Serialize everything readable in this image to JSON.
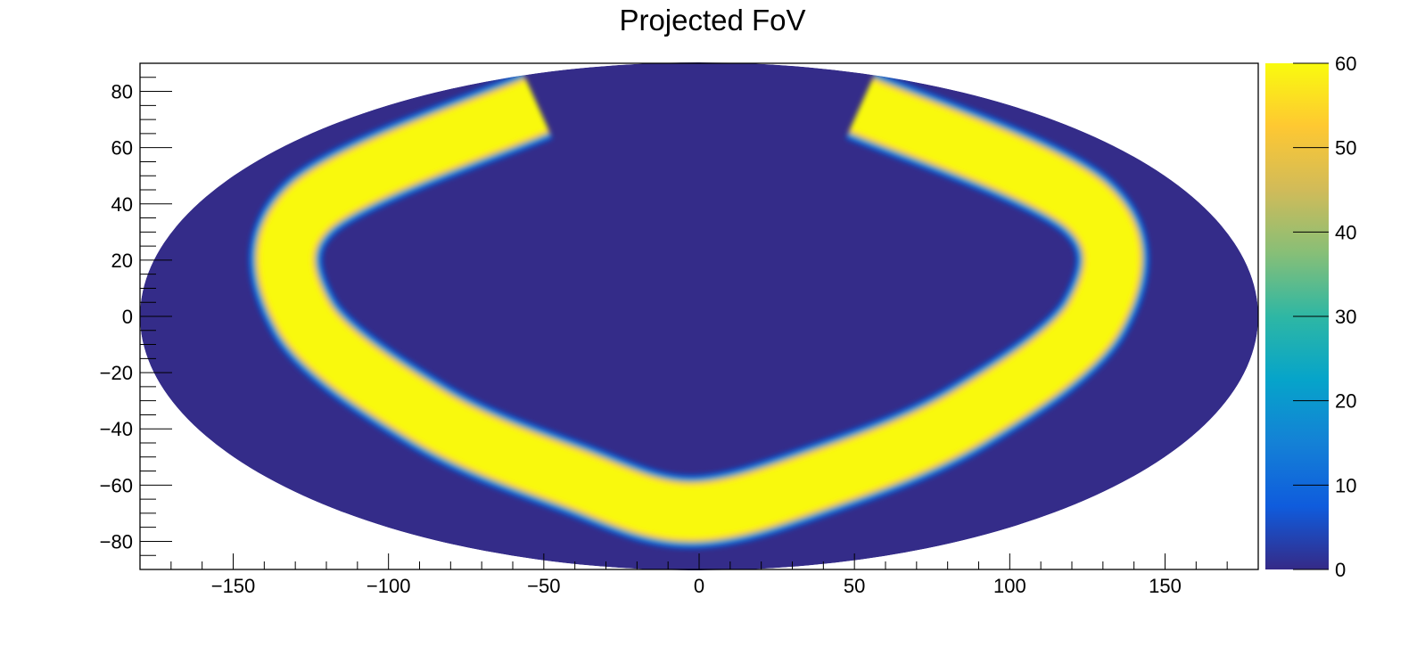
{
  "chart_data": {
    "type": "heatmap",
    "title": "Projected FoV",
    "projection": "hammer-aitoff",
    "xlabel": "",
    "ylabel": "",
    "xlim": [
      -180,
      180
    ],
    "ylim": [
      -90,
      90
    ],
    "x_ticks": [
      -150,
      -100,
      -50,
      0,
      50,
      100,
      150
    ],
    "y_ticks": [
      80,
      60,
      40,
      20,
      0,
      -20,
      -40,
      -60,
      -80
    ],
    "z_range": [
      0,
      60
    ],
    "z_ticks": [
      0,
      10,
      20,
      30,
      40,
      50,
      60
    ],
    "grid": false,
    "colorbar": "right",
    "background_value": 0,
    "band": {
      "value": 60,
      "description": "U-shaped band of full coverage",
      "center_line": [
        {
          "x": -110,
          "y": 67
        },
        {
          "x": -135,
          "y": 30
        },
        {
          "x": -120,
          "y": 0
        },
        {
          "x": -90,
          "y": -30
        },
        {
          "x": -55,
          "y": -52
        },
        {
          "x": -5,
          "y": -66
        },
        {
          "x": 55,
          "y": -52
        },
        {
          "x": 90,
          "y": -30
        },
        {
          "x": 120,
          "y": 0
        },
        {
          "x": 135,
          "y": 30
        },
        {
          "x": 110,
          "y": 67
        }
      ],
      "inner_edge_bottom": {
        "x": -5,
        "y": -55
      },
      "outer_edge_bottom": {
        "x": -5,
        "y": -77
      }
    },
    "colors": {
      "background": "#342c89",
      "peak": "#f9f90b",
      "palette": [
        "#352a87",
        "#0f5cdd",
        "#1481d6",
        "#06a4ca",
        "#2eb7a4",
        "#87bf77",
        "#d1bb59",
        "#fec832",
        "#f9fb0e"
      ]
    }
  }
}
